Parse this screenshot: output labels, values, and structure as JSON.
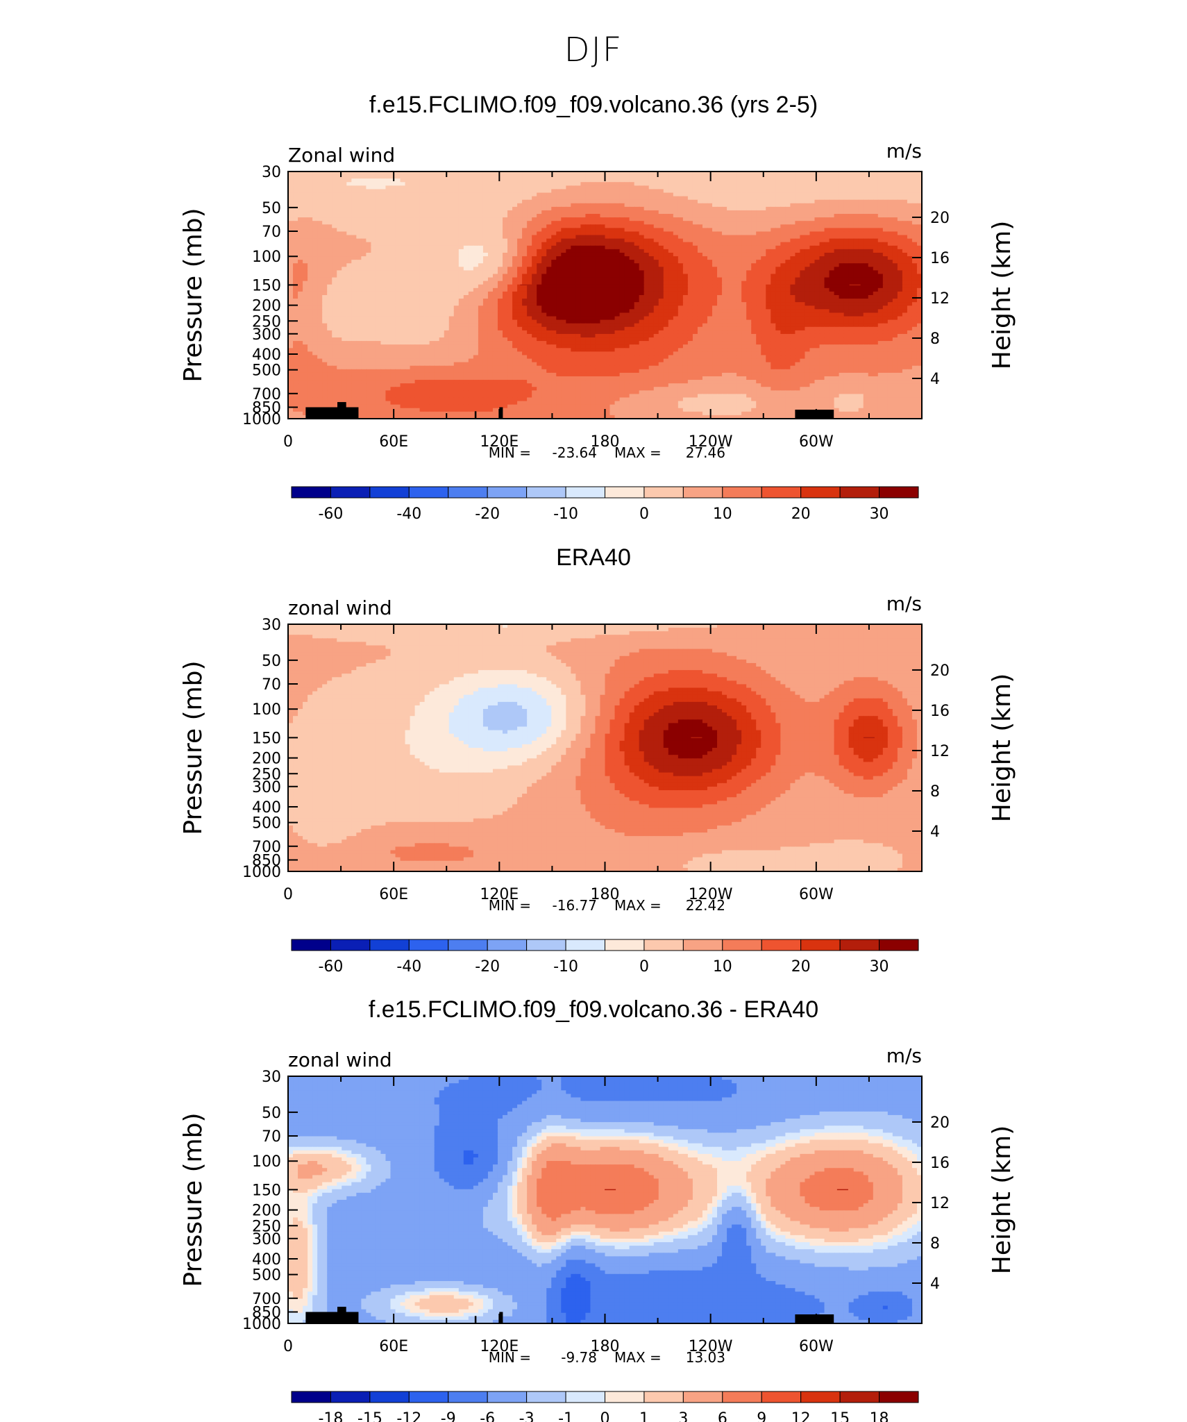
{
  "figure": {
    "title": "DJF"
  },
  "chart_data": [
    {
      "type": "heatmap",
      "title": "f.e15.FCLIMO.f09_f09.volcano.36 (yrs 2-5)",
      "left_string": "Zonal wind",
      "right_string": "m/s",
      "xlabel": "",
      "ylabel": "Pressure (mb)",
      "ylabel_right": "Height (km)",
      "x_ticks": [
        "0",
        "60E",
        "120E",
        "180",
        "120W",
        "60W"
      ],
      "y_ticks": [
        "30",
        "50",
        "70",
        "100",
        "150",
        "200",
        "250",
        "300",
        "400",
        "500",
        "700",
        "850",
        "1000"
      ],
      "height_ticks": [
        "20",
        "16",
        "12",
        "8",
        "4"
      ],
      "stats": {
        "min_label": "MIN =",
        "min": "-23.64",
        "max_label": "MAX =",
        "max": "27.46"
      },
      "colorbar_labels": [
        "-60",
        "-40",
        "-20",
        "-10",
        "0",
        "10",
        "20",
        "30"
      ],
      "colorbar_levels": [
        -70,
        -60,
        -50,
        -40,
        -30,
        -20,
        -15,
        -10,
        -5,
        0,
        5,
        10,
        15,
        20,
        25,
        30
      ],
      "features": [
        {
          "kind": "max",
          "lon": 135,
          "p": 150,
          "value": 27.46
        },
        {
          "kind": "max",
          "lon": 322,
          "p": 150,
          "value": 25
        },
        {
          "kind": "min",
          "lon": 118,
          "p": 100,
          "value": -23.64
        }
      ]
    },
    {
      "type": "heatmap",
      "title": "ERA40",
      "left_string": "zonal wind",
      "right_string": "m/s",
      "xlabel": "",
      "ylabel": "Pressure (mb)",
      "ylabel_right": "Height (km)",
      "x_ticks": [
        "0",
        "60E",
        "120E",
        "180",
        "120W",
        "60W"
      ],
      "y_ticks": [
        "30",
        "50",
        "70",
        "100",
        "150",
        "200",
        "250",
        "300",
        "400",
        "500",
        "700",
        "850",
        "1000"
      ],
      "height_ticks": [
        "20",
        "16",
        "12",
        "8",
        "4"
      ],
      "stats": {
        "min_label": "MIN =",
        "min": "-16.77",
        "max_label": "MAX =",
        "max": "22.42"
      },
      "colorbar_labels": [
        "-60",
        "-40",
        "-20",
        "-10",
        "0",
        "10",
        "20",
        "30"
      ],
      "colorbar_levels": [
        -70,
        -60,
        -50,
        -40,
        -30,
        -20,
        -15,
        -10,
        -5,
        0,
        5,
        10,
        15,
        20,
        25,
        30
      ],
      "features": [
        {
          "kind": "max",
          "lon": 232,
          "p": 150,
          "value": 22.42
        },
        {
          "kind": "max",
          "lon": 330,
          "p": 150,
          "value": 18
        },
        {
          "kind": "min",
          "lon": 130,
          "p": 100,
          "value": -16.77
        }
      ]
    },
    {
      "type": "heatmap",
      "title": "f.e15.FCLIMO.f09_f09.volcano.36 - ERA40",
      "left_string": "zonal wind",
      "right_string": "m/s",
      "xlabel": "",
      "ylabel": "Pressure (mb)",
      "ylabel_right": "Height (km)",
      "x_ticks": [
        "0",
        "60E",
        "120E",
        "180",
        "120W",
        "60W"
      ],
      "y_ticks": [
        "30",
        "50",
        "70",
        "100",
        "150",
        "200",
        "250",
        "300",
        "400",
        "500",
        "700",
        "850",
        "1000"
      ],
      "height_ticks": [
        "20",
        "16",
        "12",
        "8",
        "4"
      ],
      "stats": {
        "min_label": "MIN =",
        "min": "-9.78",
        "max_label": "MAX =",
        "max": "13.03"
      },
      "colorbar_labels": [
        "-18",
        "-15",
        "-12",
        "-9",
        "-6",
        "-3",
        "-1",
        "0",
        "1",
        "3",
        "6",
        "9",
        "12",
        "15",
        "18"
      ],
      "colorbar_levels": [
        -18,
        -15,
        -12,
        -9,
        -6,
        -3,
        -1,
        0,
        1,
        3,
        6,
        9,
        12,
        15,
        18
      ],
      "features": [
        {
          "kind": "max",
          "lon": 183,
          "p": 150,
          "value": 13.03
        },
        {
          "kind": "max",
          "lon": 315,
          "p": 150,
          "value": 12
        },
        {
          "kind": "min",
          "lon": 105,
          "p": 100,
          "value": -9.78
        }
      ]
    }
  ],
  "colors": {
    "palette": [
      "#00008b",
      "#0a1fb5",
      "#1240d6",
      "#2d62ee",
      "#4d7ef0",
      "#7da3f5",
      "#aec8f8",
      "#d9e9fd",
      "#fde9da",
      "#fcc9ae",
      "#f8a384",
      "#f47c59",
      "#ee5430",
      "#d9330f",
      "#b31e0b",
      "#8b0000"
    ],
    "topography": "#000000"
  }
}
